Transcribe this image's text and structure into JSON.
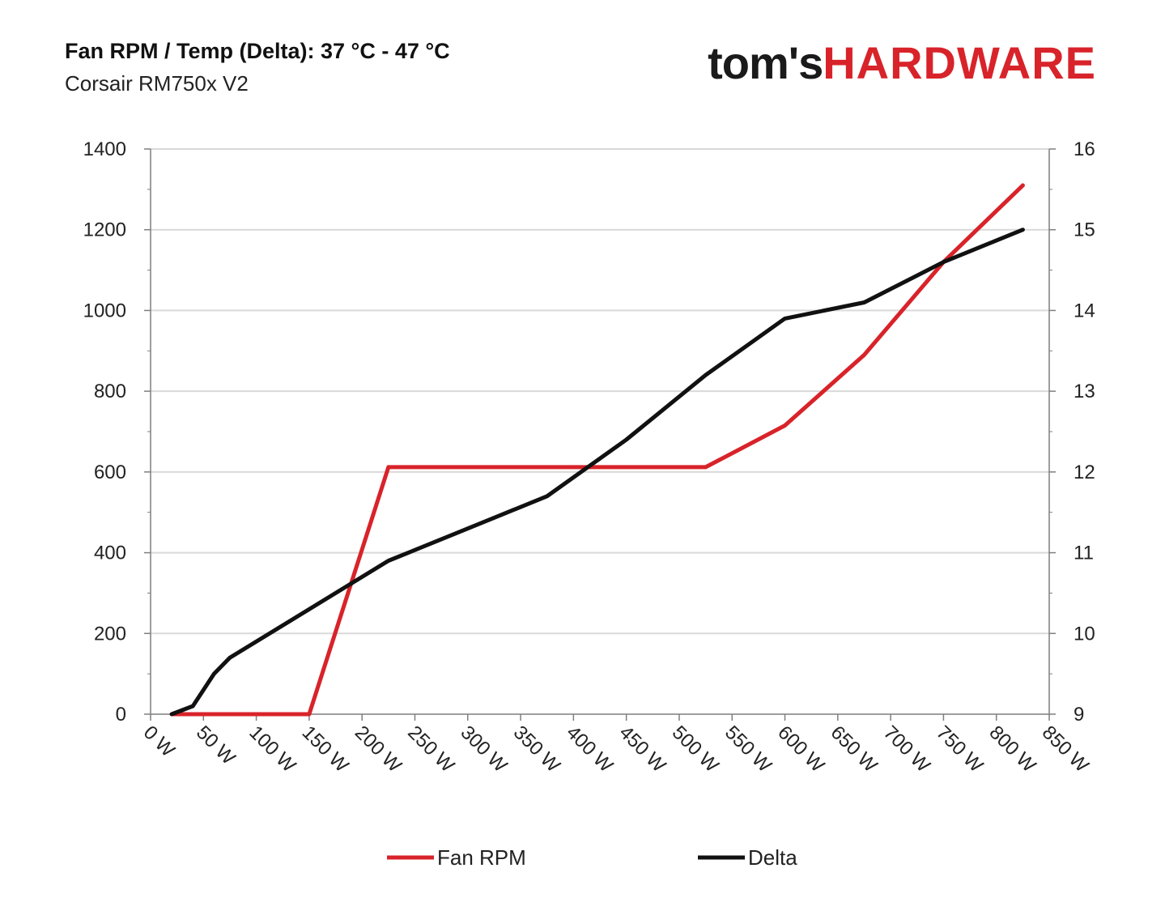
{
  "header": {
    "title": "Fan RPM / Temp (Delta): 37 °C - 47 °C",
    "subtitle": "Corsair RM750x V2"
  },
  "logo": {
    "part1": "tom's",
    "part2": "HARDWARE"
  },
  "colors": {
    "fan": "#d8232a",
    "delta": "#111111",
    "grid": "#d9d9d9",
    "axis": "#7f7f7f"
  },
  "chart_data": {
    "type": "line",
    "x_ticks": [
      "0 W",
      "50 W",
      "100 W",
      "150 W",
      "200 W",
      "250 W",
      "300 W",
      "350 W",
      "400 W",
      "450 W",
      "500 W",
      "550 W",
      "600 W",
      "650 W",
      "700 W",
      "750 W",
      "800 W",
      "850 W"
    ],
    "xlim": [
      0,
      850
    ],
    "y_left": {
      "ticks": [
        "0",
        "200",
        "400",
        "600",
        "800",
        "1000",
        "1200",
        "1400"
      ],
      "lim": [
        0,
        1400
      ]
    },
    "y_right": {
      "ticks": [
        "9",
        "10",
        "11",
        "12",
        "13",
        "14",
        "15",
        "16"
      ],
      "lim": [
        9,
        16
      ]
    },
    "grid": true,
    "legend_position": "bottom",
    "series": [
      {
        "name": "Fan RPM",
        "axis": "left",
        "x": [
          20,
          40,
          75,
          150,
          225,
          300,
          375,
          450,
          525,
          600,
          675,
          750,
          825
        ],
        "y": [
          0,
          0,
          0,
          0,
          612,
          612,
          612,
          612,
          612,
          715,
          890,
          1120,
          1310
        ]
      },
      {
        "name": "Delta",
        "axis": "right",
        "x": [
          20,
          40,
          60,
          75,
          150,
          225,
          300,
          375,
          450,
          525,
          600,
          675,
          750,
          825
        ],
        "y": [
          9.0,
          9.1,
          9.5,
          9.7,
          10.3,
          10.9,
          11.3,
          11.7,
          12.4,
          13.2,
          13.9,
          14.1,
          14.6,
          15.0
        ]
      }
    ]
  }
}
